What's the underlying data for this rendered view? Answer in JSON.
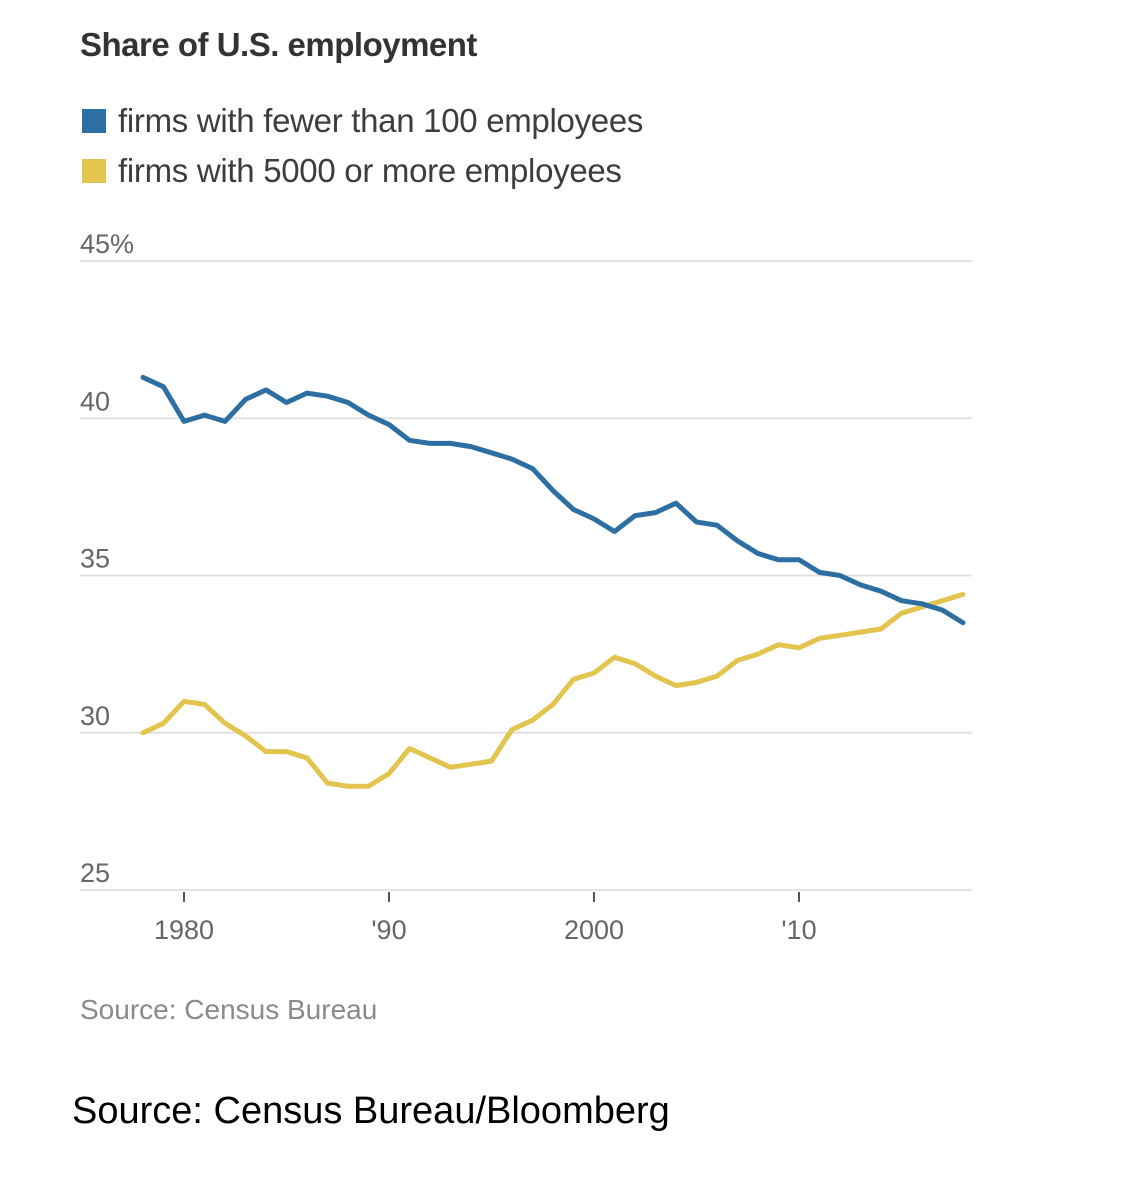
{
  "chart_data": {
    "type": "line",
    "title": "Share of U.S. employment",
    "xlabel": "",
    "ylabel": "",
    "x": [
      1978,
      1979,
      1980,
      1981,
      1982,
      1983,
      1984,
      1985,
      1986,
      1987,
      1988,
      1989,
      1990,
      1991,
      1992,
      1993,
      1994,
      1995,
      1996,
      1997,
      1998,
      1999,
      2000,
      2001,
      2002,
      2003,
      2004,
      2005,
      2006,
      2007,
      2008,
      2009,
      2010,
      2011,
      2012,
      2013,
      2014,
      2015,
      2016,
      2017,
      2018
    ],
    "xlim": [
      1978,
      2018
    ],
    "ylim": [
      25,
      45
    ],
    "y_ticks": [
      {
        "value": 45,
        "label": "45%"
      },
      {
        "value": 40,
        "label": "40"
      },
      {
        "value": 35,
        "label": "35"
      },
      {
        "value": 30,
        "label": "30"
      },
      {
        "value": 25,
        "label": "25"
      }
    ],
    "x_ticks": [
      {
        "value": 1980,
        "label": "1980"
      },
      {
        "value": 1990,
        "label": "'90"
      },
      {
        "value": 2000,
        "label": "2000"
      },
      {
        "value": 2010,
        "label": "'10"
      }
    ],
    "grid": true,
    "legend_position": "top-left",
    "series": [
      {
        "name": "firms with fewer than 100 employees",
        "color": "#2e6fa3",
        "values": [
          41.3,
          41.0,
          39.9,
          40.1,
          39.9,
          40.6,
          40.9,
          40.5,
          40.8,
          40.7,
          40.5,
          40.1,
          39.8,
          39.3,
          39.2,
          39.2,
          39.1,
          38.9,
          38.7,
          38.4,
          37.7,
          37.1,
          36.8,
          36.4,
          36.9,
          37.0,
          37.3,
          36.7,
          36.6,
          36.1,
          35.7,
          35.5,
          35.5,
          35.1,
          35.0,
          34.7,
          34.5,
          34.2,
          34.1,
          33.9,
          33.5
        ]
      },
      {
        "name": "firms with 5000 or more employees",
        "color": "#e3c44e",
        "values": [
          30.0,
          30.3,
          31.0,
          30.9,
          30.3,
          29.9,
          29.4,
          29.4,
          29.2,
          28.4,
          28.3,
          28.3,
          28.7,
          29.5,
          29.2,
          28.9,
          29.0,
          29.1,
          30.1,
          30.4,
          30.9,
          31.7,
          31.9,
          32.4,
          32.2,
          31.8,
          31.5,
          31.6,
          31.8,
          32.3,
          32.5,
          32.8,
          32.7,
          33.0,
          33.1,
          33.2,
          33.3,
          33.8,
          34.0,
          34.2,
          34.4
        ]
      }
    ],
    "source": "Source: Census Bureau"
  },
  "caption": "Source: Census Bureau/Bloomberg"
}
